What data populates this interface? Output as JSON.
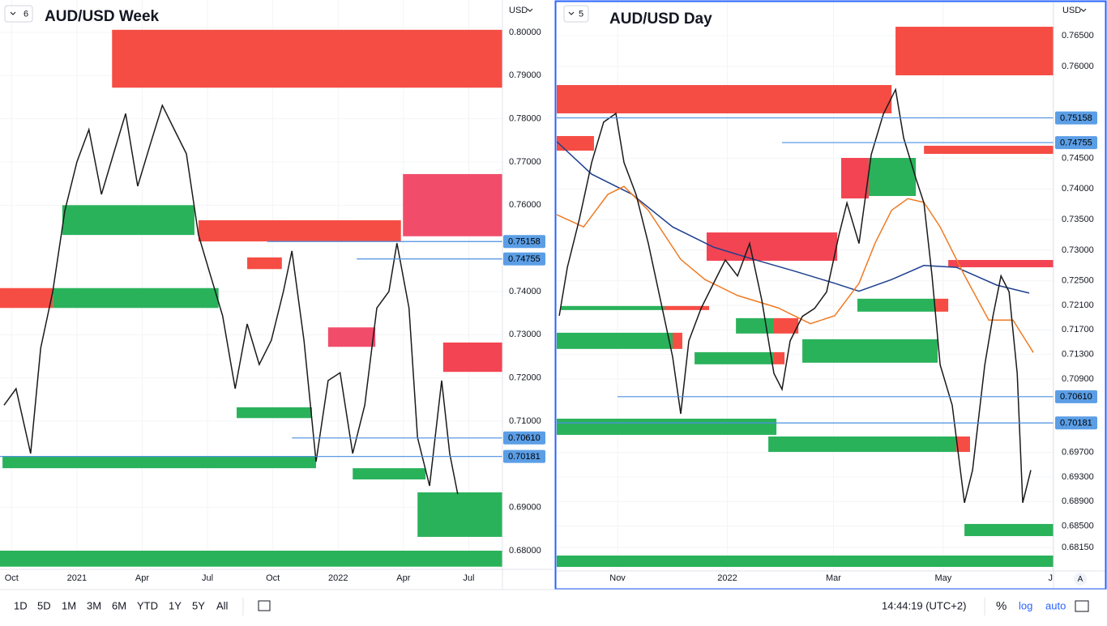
{
  "toolbar": {
    "ranges": [
      "1D",
      "5D",
      "1M",
      "3M",
      "6M",
      "YTD",
      "1Y",
      "5Y",
      "All"
    ],
    "clock": "14:44:19 (UTC+2)",
    "percent": "%",
    "log": "log",
    "auto": "auto"
  },
  "charts": [
    {
      "legend_count": "6",
      "title": "AUD/USD Week",
      "currency": "USD",
      "xlim": [
        -2.3,
        97.7
      ],
      "ylim": [
        0.67625,
        0.8075
      ],
      "xticks": [
        {
          "value": 0,
          "label": "Oct"
        },
        {
          "value": 13,
          "label": "2021"
        },
        {
          "value": 26,
          "label": "Apr"
        },
        {
          "value": 39,
          "label": "Jul"
        },
        {
          "value": 52,
          "label": "Oct"
        },
        {
          "value": 65,
          "label": "2022"
        },
        {
          "value": 78,
          "label": "Apr"
        },
        {
          "value": 91,
          "label": "Jul"
        }
      ],
      "yticks": [
        {
          "value": 0.8,
          "label": "0.80000"
        },
        {
          "value": 0.79,
          "label": "0.79000"
        },
        {
          "value": 0.78,
          "label": "0.78000"
        },
        {
          "value": 0.77,
          "label": "0.77000"
        },
        {
          "value": 0.76,
          "label": "0.76000"
        },
        {
          "value": 0.74,
          "label": "0.74000"
        },
        {
          "value": 0.73,
          "label": "0.73000"
        },
        {
          "value": 0.72,
          "label": "0.72000"
        },
        {
          "value": 0.71,
          "label": "0.71000"
        },
        {
          "value": 0.69,
          "label": "0.69000"
        },
        {
          "value": 0.68,
          "label": "0.68000"
        }
      ],
      "close": {
        "color": "#1a1a1a",
        "x": [
          -1.5,
          0.9,
          3.8,
          5.8,
          8.2,
          10.6,
          13,
          15.4,
          17.9,
          20.3,
          22.7,
          25.1,
          27.5,
          30,
          32.4,
          34.8,
          37.2,
          39.6,
          42,
          44.5,
          46.9,
          49.3,
          51.7,
          54.1,
          55.8,
          58.2,
          60.6,
          63,
          65.4,
          67.9,
          70.3,
          72.7,
          75.1,
          76.7,
          79.1,
          80.8,
          83.2,
          85.6,
          87.2,
          88.8
        ],
        "values": [
          0.7137,
          0.7175,
          0.7025,
          0.7269,
          0.74,
          0.7587,
          0.77,
          0.7775,
          0.7625,
          0.7719,
          0.7812,
          0.7644,
          0.7737,
          0.7831,
          0.7775,
          0.7719,
          0.7531,
          0.7437,
          0.7344,
          0.7175,
          0.7325,
          0.7231,
          0.7287,
          0.74,
          0.7494,
          0.7287,
          0.7006,
          0.7194,
          0.7212,
          0.7025,
          0.7137,
          0.7362,
          0.74,
          0.7512,
          0.7362,
          0.7062,
          0.695,
          0.7194,
          0.7025,
          0.6931
        ]
      },
      "mas": [],
      "zones": [
        {
          "start": 20,
          "end": 97.7,
          "top": 0.8006,
          "bottom": 0.7872,
          "color": "#f4433a"
        },
        {
          "start": 10.1,
          "end": 36.4,
          "top": 0.76,
          "bottom": 0.7531,
          "color": "#1fae52"
        },
        {
          "start": 37.2,
          "end": 77.5,
          "top": 0.7565,
          "bottom": 0.7516,
          "color": "#f4433a"
        },
        {
          "start": 77.9,
          "end": 97.7,
          "top": 0.7672,
          "bottom": 0.7528,
          "color": "#f04363"
        },
        {
          "start": -2.3,
          "end": 8.2,
          "top": 0.7408,
          "bottom": 0.7362,
          "color": "#f4433a"
        },
        {
          "start": 8.2,
          "end": 41.2,
          "top": 0.7408,
          "bottom": 0.7362,
          "color": "#1fae52"
        },
        {
          "start": 85.9,
          "end": 97.7,
          "top": 0.7282,
          "bottom": 0.7214,
          "color": "#f23a4a"
        },
        {
          "start": 80.8,
          "end": 97.7,
          "top": 0.6935,
          "bottom": 0.6832,
          "color": "#1fae52"
        },
        {
          "start": -2.3,
          "end": 97.7,
          "top": 0.68,
          "bottom": 0.6763,
          "color": "#1fae52"
        },
        {
          "start": -1.8,
          "end": 60.6,
          "top": 0.7019,
          "bottom": 0.6991,
          "color": "#1fae52"
        },
        {
          "start": 67.9,
          "end": 82.4,
          "top": 0.6991,
          "bottom": 0.6965,
          "color": "#1fae52"
        },
        {
          "start": 44.8,
          "end": 59.8,
          "top": 0.7132,
          "bottom": 0.7107,
          "color": "#1fae52"
        },
        {
          "start": 63,
          "end": 72.4,
          "top": 0.7317,
          "bottom": 0.7272,
          "color": "#f04363"
        },
        {
          "start": 46.9,
          "end": 53.8,
          "top": 0.7479,
          "bottom": 0.7452,
          "color": "#f4433a"
        }
      ],
      "price_lines": [
        {
          "start": 50.9,
          "value": 0.75158,
          "label": "0.75158"
        },
        {
          "start": 68.7,
          "value": 0.74755,
          "label": "0.74755"
        },
        {
          "start": 55.8,
          "value": 0.7061,
          "label": "0.70610"
        },
        {
          "start": -2.3,
          "value": 0.70181,
          "label": "0.70181"
        }
      ]
    },
    {
      "legend_count": "5",
      "title": "AUD/USD Day",
      "currency": "USD",
      "scale_mode": "A",
      "xlim": [
        -33.8,
        242.3
      ],
      "ylim": [
        0.67767,
        0.77055
      ],
      "xticks": [
        {
          "value": 0,
          "label": "Nov"
        },
        {
          "value": 61,
          "label": "2022"
        },
        {
          "value": 120,
          "label": "Mar"
        },
        {
          "value": 181,
          "label": "May"
        },
        {
          "value": 242,
          "label": "Ju"
        }
      ],
      "yticks": [
        {
          "value": 0.765,
          "label": "0.76500"
        },
        {
          "value": 0.76,
          "label": "0.76000"
        },
        {
          "value": 0.745,
          "label": "0.74500"
        },
        {
          "value": 0.74,
          "label": "0.74000"
        },
        {
          "value": 0.735,
          "label": "0.73500"
        },
        {
          "value": 0.73,
          "label": "0.73000"
        },
        {
          "value": 0.725,
          "label": "0.72500"
        },
        {
          "value": 0.721,
          "label": "0.72100"
        },
        {
          "value": 0.717,
          "label": "0.71700"
        },
        {
          "value": 0.713,
          "label": "0.71300"
        },
        {
          "value": 0.709,
          "label": "0.70900"
        },
        {
          "value": 0.697,
          "label": "0.69700"
        },
        {
          "value": 0.693,
          "label": "0.69300"
        },
        {
          "value": 0.689,
          "label": "0.68900"
        },
        {
          "value": 0.685,
          "label": "0.68500"
        },
        {
          "value": 0.6815,
          "label": "0.68150"
        }
      ],
      "close": {
        "color": "#1a1a1a",
        "x": [
          -32.4,
          -27.9,
          -21.2,
          -14.4,
          -7.7,
          -0.9,
          3.6,
          10.4,
          17.1,
          23.9,
          30.6,
          35.1,
          39.6,
          46.4,
          53.2,
          59.9,
          66.7,
          73.4,
          80.2,
          86.9,
          91.4,
          95.9,
          102.7,
          109.5,
          116.2,
          123,
          127.5,
          134.2,
          141,
          147.7,
          154.5,
          159,
          165.8,
          170.3,
          174.8,
          179.3,
          186,
          192.8,
          197.3,
          204.1,
          208.6,
          213.1,
          217.6,
          222.1,
          225.2,
          229.7
        ],
        "values": [
          0.7193,
          0.7272,
          0.7351,
          0.7443,
          0.7509,
          0.7523,
          0.7443,
          0.739,
          0.7311,
          0.7218,
          0.7126,
          0.7033,
          0.7152,
          0.7205,
          0.7245,
          0.7284,
          0.7258,
          0.7311,
          0.7218,
          0.7099,
          0.7073,
          0.7152,
          0.7192,
          0.7205,
          0.7232,
          0.7324,
          0.7377,
          0.7311,
          0.7456,
          0.7522,
          0.7562,
          0.7483,
          0.7417,
          0.7377,
          0.7258,
          0.7113,
          0.7047,
          0.6888,
          0.6941,
          0.7113,
          0.7192,
          0.7258,
          0.7232,
          0.7099,
          0.6888,
          0.6941
        ]
      },
      "mas": [
        {
          "color": "#1e3f8f",
          "x": [
            -33.8,
            -14.4,
            8.1,
            30.6,
            53.2,
            75.7,
            98.2,
            120.7,
            134.2,
            152.3,
            170.3,
            188.3,
            210.8,
            228.8
          ],
          "values": [
            0.7477,
            0.7424,
            0.7391,
            0.7338,
            0.7305,
            0.7285,
            0.7266,
            0.7246,
            0.7233,
            0.7252,
            0.7275,
            0.7272,
            0.7243,
            0.723
          ]
        },
        {
          "color": "#f07a22",
          "x": [
            -33.8,
            -18.9,
            -5.4,
            3.6,
            17.1,
            35.1,
            48.6,
            66.7,
            89.2,
            107.2,
            120.7,
            134.2,
            143.2,
            152.3,
            161.3,
            170.3,
            179.3,
            192.8,
            206.3,
            219.8,
            231.1
          ],
          "values": [
            0.7358,
            0.7338,
            0.7391,
            0.7404,
            0.7365,
            0.7285,
            0.7252,
            0.7226,
            0.7206,
            0.718,
            0.7193,
            0.7246,
            0.7312,
            0.7365,
            0.7384,
            0.7378,
            0.7338,
            0.7259,
            0.7186,
            0.7186,
            0.7133
          ]
        }
      ],
      "zones": [
        {
          "start": 154.5,
          "end": 242.3,
          "top": 0.76645,
          "bottom": 0.75853,
          "color": "#f4433a"
        },
        {
          "start": -33.8,
          "end": 152.3,
          "top": 0.75694,
          "bottom": 0.75232,
          "color": "#f4433a"
        },
        {
          "start": -33.8,
          "end": -13.1,
          "top": 0.74862,
          "bottom": 0.74624,
          "color": "#f4433a"
        },
        {
          "start": 170.3,
          "end": 242.3,
          "top": 0.74703,
          "bottom": 0.74571,
          "color": "#f4433a"
        },
        {
          "start": 124.3,
          "end": 139.6,
          "top": 0.74505,
          "bottom": 0.73844,
          "color": "#f23a4a"
        },
        {
          "start": 139.6,
          "end": 165.8,
          "top": 0.74505,
          "bottom": 0.73884,
          "color": "#1fae52"
        },
        {
          "start": 49.5,
          "end": 122.1,
          "top": 0.73289,
          "bottom": 0.72827,
          "color": "#f23a4a"
        },
        {
          "start": 183.8,
          "end": 242.3,
          "top": 0.7284,
          "bottom": 0.72721,
          "color": "#f23a4a"
        },
        {
          "start": -31.5,
          "end": 26.1,
          "top": 0.72089,
          "bottom": 0.72023,
          "color": "#1fae52"
        },
        {
          "start": 26.1,
          "end": 50.9,
          "top": 0.72089,
          "bottom": 0.72023,
          "color": "#f4433a"
        },
        {
          "start": 133.3,
          "end": 177,
          "top": 0.72208,
          "bottom": 0.71997,
          "color": "#1fae52"
        },
        {
          "start": 177,
          "end": 183.8,
          "top": 0.72208,
          "bottom": 0.71997,
          "color": "#f4433a"
        },
        {
          "start": 65.8,
          "end": 86.9,
          "top": 0.71891,
          "bottom": 0.7164,
          "color": "#1fae52"
        },
        {
          "start": 86.9,
          "end": 100.5,
          "top": 0.71891,
          "bottom": 0.7164,
          "color": "#f4433a"
        },
        {
          "start": -33.8,
          "end": 30.6,
          "top": 0.71653,
          "bottom": 0.71389,
          "color": "#1fae52"
        },
        {
          "start": 30.6,
          "end": 36,
          "top": 0.71653,
          "bottom": 0.71389,
          "color": "#f4433a"
        },
        {
          "start": 42.8,
          "end": 86.9,
          "top": 0.71336,
          "bottom": 0.71138,
          "color": "#1fae52"
        },
        {
          "start": 86.9,
          "end": 92.8,
          "top": 0.71336,
          "bottom": 0.71138,
          "color": "#f4433a"
        },
        {
          "start": 102.7,
          "end": 177.9,
          "top": 0.71547,
          "bottom": 0.71164,
          "color": "#1fae52"
        },
        {
          "start": -33.8,
          "end": 88.3,
          "top": 0.70251,
          "bottom": 0.69987,
          "color": "#1fae52"
        },
        {
          "start": 83.8,
          "end": 188.3,
          "top": 0.6996,
          "bottom": 0.69709,
          "color": "#1fae52"
        },
        {
          "start": 188.3,
          "end": 195.9,
          "top": 0.6996,
          "bottom": 0.69709,
          "color": "#f4433a"
        },
        {
          "start": 192.8,
          "end": 242.3,
          "top": 0.68533,
          "bottom": 0.68335,
          "color": "#1fae52"
        },
        {
          "start": -33.8,
          "end": 242.3,
          "top": 0.68018,
          "bottom": 0.67833,
          "color": "#1fae52"
        }
      ],
      "price_lines": [
        {
          "start": -33.8,
          "value": 0.75158,
          "label": "0.75158"
        },
        {
          "start": 91.4,
          "value": 0.74755,
          "label": "0.74755"
        },
        {
          "start": 0,
          "value": 0.7061,
          "label": "0.70610"
        },
        {
          "start": -33.8,
          "value": 0.70181,
          "label": "0.70181"
        }
      ]
    }
  ]
}
